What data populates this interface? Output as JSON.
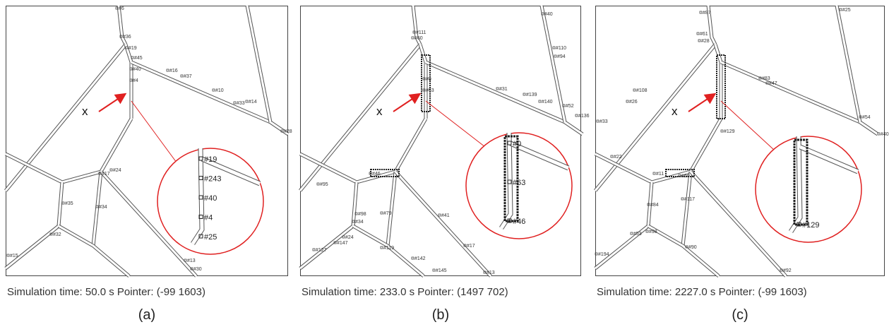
{
  "panels": [
    {
      "caption": "Simulation time: 50.0 s Pointer: (-99 1603)",
      "letter": "(a)",
      "marker": "x",
      "labels": [
        "#6",
        "#36",
        "#19",
        "#45",
        "#40",
        "#4",
        "#16",
        "#37",
        "#10",
        "#33",
        "#14",
        "#28",
        "#24",
        "#17",
        "#35",
        "#34",
        "#32",
        "#15",
        "#13",
        "#30"
      ],
      "zoom_labels": [
        "#19",
        "#243",
        "#40",
        "#4",
        "#25"
      ]
    },
    {
      "caption": "Simulation time: 233.0 s Pointer: (1497 702)",
      "letter": "(b)",
      "marker": "x",
      "labels": [
        "#111",
        "#60",
        "#40",
        "#110",
        "#94",
        "#31",
        "#139",
        "#140",
        "#52",
        "#136",
        "#0",
        "#63",
        "#46",
        "#95",
        "#98",
        "#34",
        "#79",
        "#41",
        "#127",
        "#147",
        "#24",
        "#119",
        "#142",
        "#145",
        "#13",
        "#17"
      ],
      "zoom_labels": [
        "#0",
        "#63",
        "#46"
      ]
    },
    {
      "caption": "Simulation time: 2227.0 s Pointer: (-99 1603)",
      "letter": "(c)",
      "marker": "x",
      "labels": [
        "#87",
        "#61",
        "#28",
        "#25",
        "#83",
        "#47",
        "#108",
        "#26",
        "#33",
        "#129",
        "#22",
        "#11",
        "#60",
        "#117",
        "#84",
        "#98",
        "#53",
        "#194",
        "#92",
        "#40",
        "#54",
        "#90"
      ],
      "zoom_labels": [
        "#129"
      ]
    }
  ]
}
